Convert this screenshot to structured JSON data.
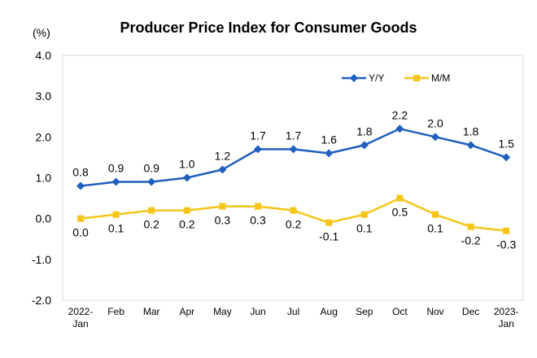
{
  "chart_data": {
    "type": "line",
    "title": "Producer Price Index for Consumer Goods",
    "unit": "(%)",
    "categories": [
      [
        "2022-",
        "Jan"
      ],
      [
        "Feb"
      ],
      [
        "Mar"
      ],
      [
        "Apr"
      ],
      [
        "May"
      ],
      [
        "Jun"
      ],
      [
        "Jul"
      ],
      [
        "Aug"
      ],
      [
        "Sep"
      ],
      [
        "Oct"
      ],
      [
        "Nov"
      ],
      [
        "Dec"
      ],
      [
        "2023-",
        "Jan"
      ]
    ],
    "ylim": [
      -2.0,
      4.0
    ],
    "yticks": [
      "4.0",
      "3.0",
      "2.0",
      "1.0",
      "0.0",
      "-1.0",
      "-2.0"
    ],
    "grid": false,
    "legend_position": "top-right",
    "series": [
      {
        "name": "Y/Y",
        "color": "#1f5fbf",
        "marker": "diamond",
        "values": [
          0.8,
          0.9,
          0.9,
          1.0,
          1.2,
          1.7,
          1.7,
          1.6,
          1.8,
          2.2,
          2.0,
          1.8,
          1.5
        ],
        "labels": [
          "0.8",
          "0.9",
          "0.9",
          "1.0",
          "1.2",
          "1.7",
          "1.7",
          "1.6",
          "1.8",
          "2.2",
          "2.0",
          "1.8",
          "1.5"
        ]
      },
      {
        "name": "M/M",
        "color": "#f5c518",
        "marker": "square",
        "values": [
          0.0,
          0.1,
          0.2,
          0.2,
          0.3,
          0.3,
          0.2,
          -0.1,
          0.1,
          0.5,
          0.1,
          -0.2,
          -0.3
        ],
        "labels": [
          "0.0",
          "0.1",
          "0.2",
          "0.2",
          "0.3",
          "0.3",
          "0.2",
          "-0.1",
          "0.1",
          "0.5",
          "0.1",
          "-0.2",
          "-0.3"
        ]
      }
    ]
  }
}
